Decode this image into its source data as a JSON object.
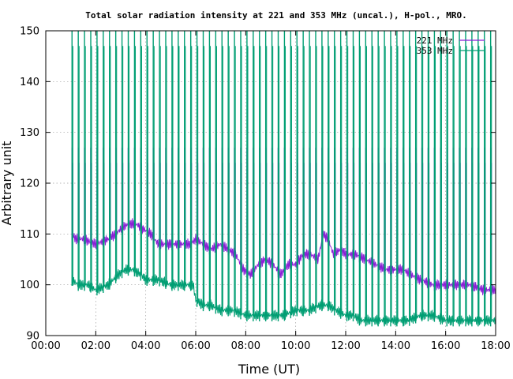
{
  "chart_data": {
    "type": "line",
    "title": "Total solar radiation intensity at 221 and 353 MHz (uncal.), H-pol., MRO.",
    "xlabel": "Time (UT)",
    "ylabel": "Arbitrary unit",
    "xlim": [
      0,
      18
    ],
    "ylim": [
      90,
      150
    ],
    "x_ticks": [
      0,
      2,
      4,
      6,
      8,
      10,
      12,
      14,
      16,
      18
    ],
    "x_tick_labels": [
      "00:00",
      "02:00",
      "04:00",
      "06:00",
      "08:00",
      "10:00",
      "12:00",
      "14:00",
      "16:00",
      "18:00"
    ],
    "y_ticks": [
      90,
      100,
      110,
      120,
      130,
      140,
      150
    ],
    "y_tick_labels": [
      "90",
      "100",
      "110",
      "120",
      "130",
      "140",
      "150"
    ],
    "grid": true,
    "legend_position": "top-right",
    "spike_interval_hours": 0.25,
    "series": [
      {
        "name": "221 MHz",
        "color": "#8b1fd6",
        "spike_level": 127,
        "x": [
          1.05,
          1.2,
          1.5,
          2.0,
          2.5,
          2.8,
          3.0,
          3.3,
          3.6,
          3.9,
          4.2,
          4.5,
          5.0,
          5.4,
          5.8,
          6.0,
          6.3,
          6.6,
          7.0,
          7.3,
          7.6,
          7.9,
          8.2,
          8.5,
          8.8,
          9.1,
          9.4,
          9.7,
          10.0,
          10.3,
          10.6,
          10.9,
          11.1,
          11.3,
          11.5,
          11.8,
          12.0,
          12.4,
          12.8,
          13.2,
          13.6,
          14.0,
          14.3,
          14.6,
          15.0,
          15.5,
          16.0,
          16.5,
          17.0,
          17.5,
          18.0
        ],
        "values": [
          110,
          109,
          109,
          108,
          109,
          110,
          111,
          112,
          112,
          111,
          110,
          108,
          108,
          108,
          108,
          109,
          108,
          107,
          108,
          107,
          106,
          103,
          102,
          104,
          105,
          104,
          102,
          104,
          104,
          106,
          106,
          105,
          110,
          109,
          106,
          107,
          106,
          106,
          105,
          104,
          103,
          103,
          103,
          102,
          101,
          100,
          100,
          100,
          100,
          99,
          99
        ]
      },
      {
        "name": "353 MHz",
        "color": "#009e73",
        "spike_level": 150,
        "x": [
          1.05,
          1.3,
          1.7,
          2.0,
          2.5,
          2.9,
          3.2,
          3.5,
          3.8,
          4.0,
          4.5,
          5.0,
          5.5,
          5.9,
          6.0,
          6.3,
          6.6,
          7.0,
          7.5,
          8.0,
          8.5,
          9.0,
          9.5,
          10.0,
          10.5,
          11.0,
          11.3,
          11.6,
          12.0,
          12.3,
          12.6,
          13.0,
          13.5,
          14.0,
          14.5,
          15.0,
          15.5,
          16.0,
          16.5,
          17.0,
          17.5,
          18.0
        ],
        "values": [
          101,
          100,
          100,
          99,
          100,
          102,
          103,
          103,
          102,
          101,
          101,
          100,
          100,
          100,
          97,
          96,
          96,
          95,
          95,
          94,
          94,
          94,
          94,
          95,
          95,
          96,
          96,
          95,
          94,
          94,
          93,
          93,
          93,
          93,
          93,
          94,
          94,
          93,
          93,
          93,
          93,
          93
        ]
      }
    ]
  }
}
